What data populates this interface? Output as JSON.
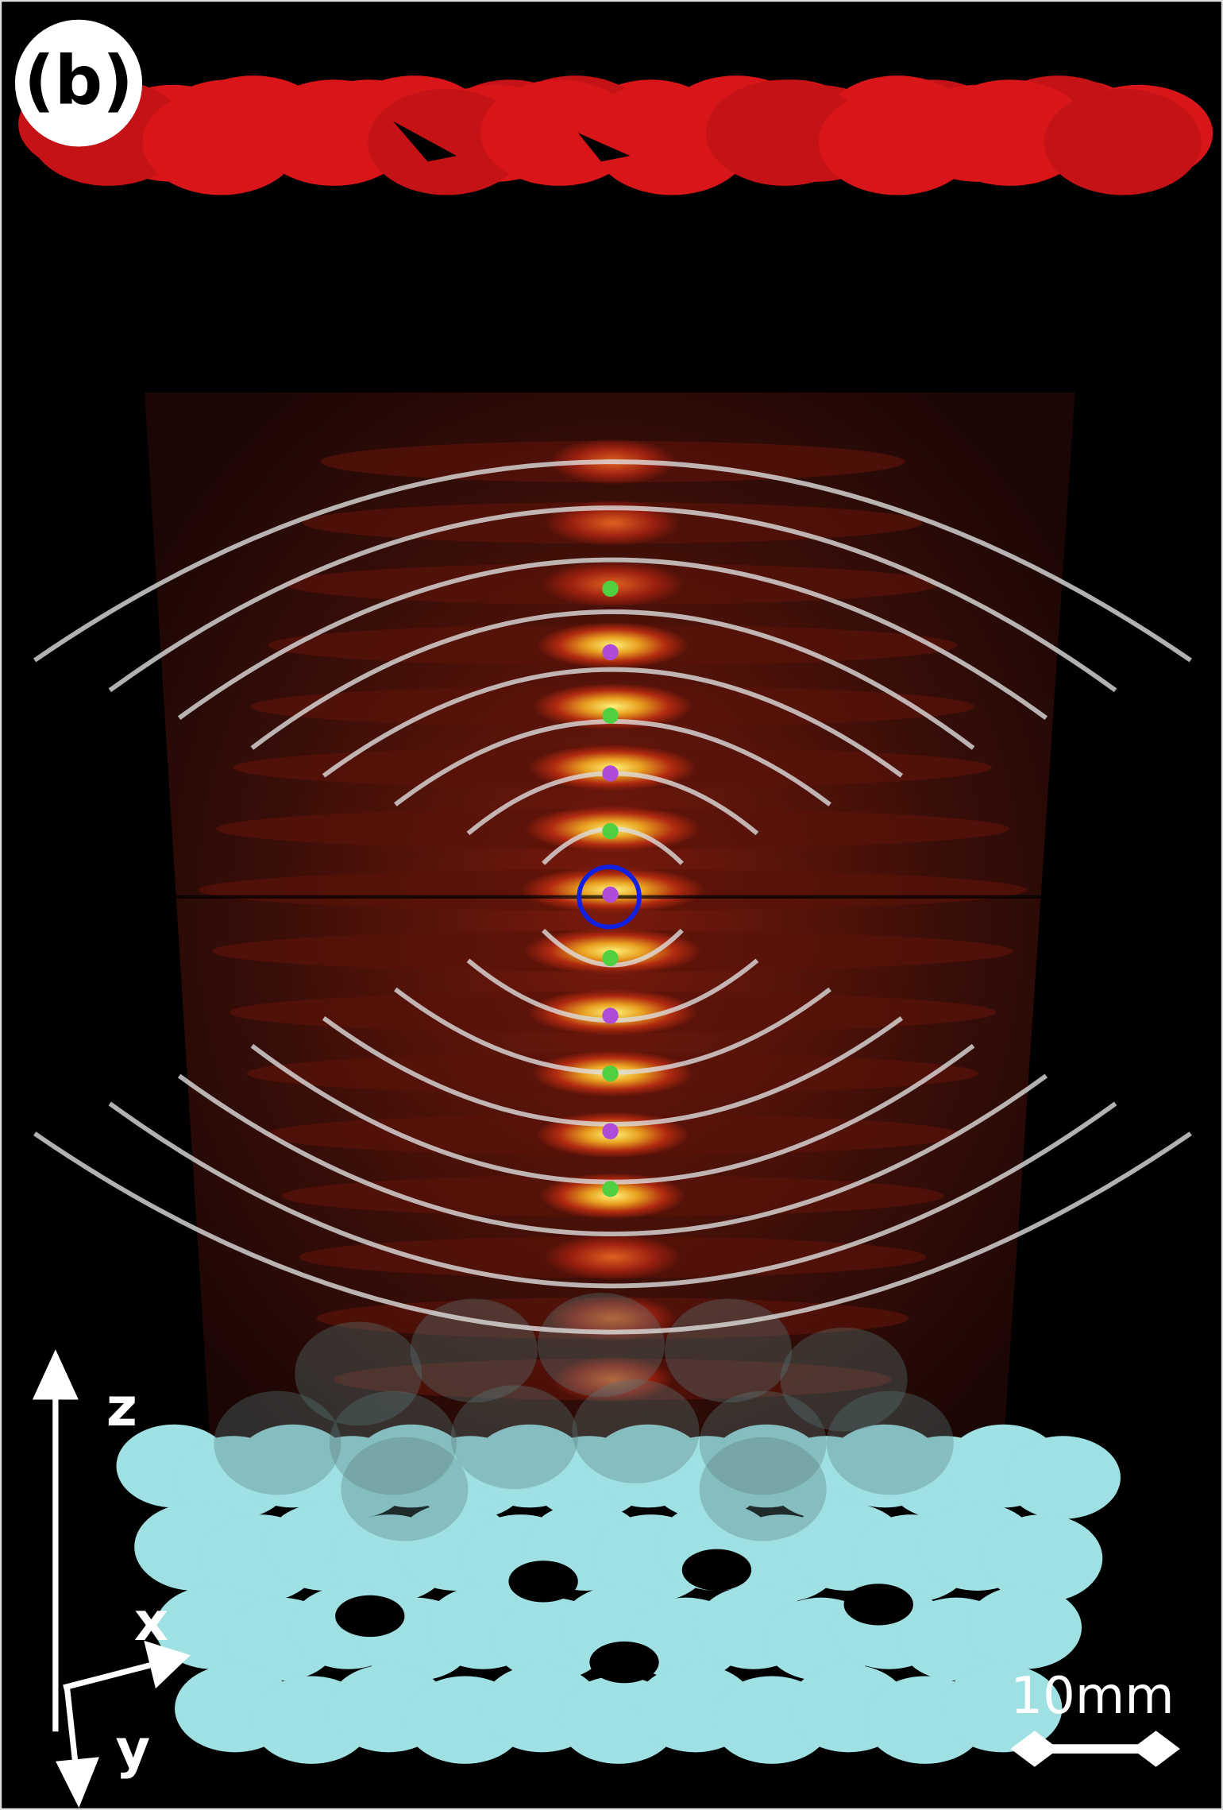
{
  "panel_label": "(b)",
  "axes": {
    "z": "z",
    "x": "x",
    "y": "y"
  },
  "scale_bar": "10mm"
}
